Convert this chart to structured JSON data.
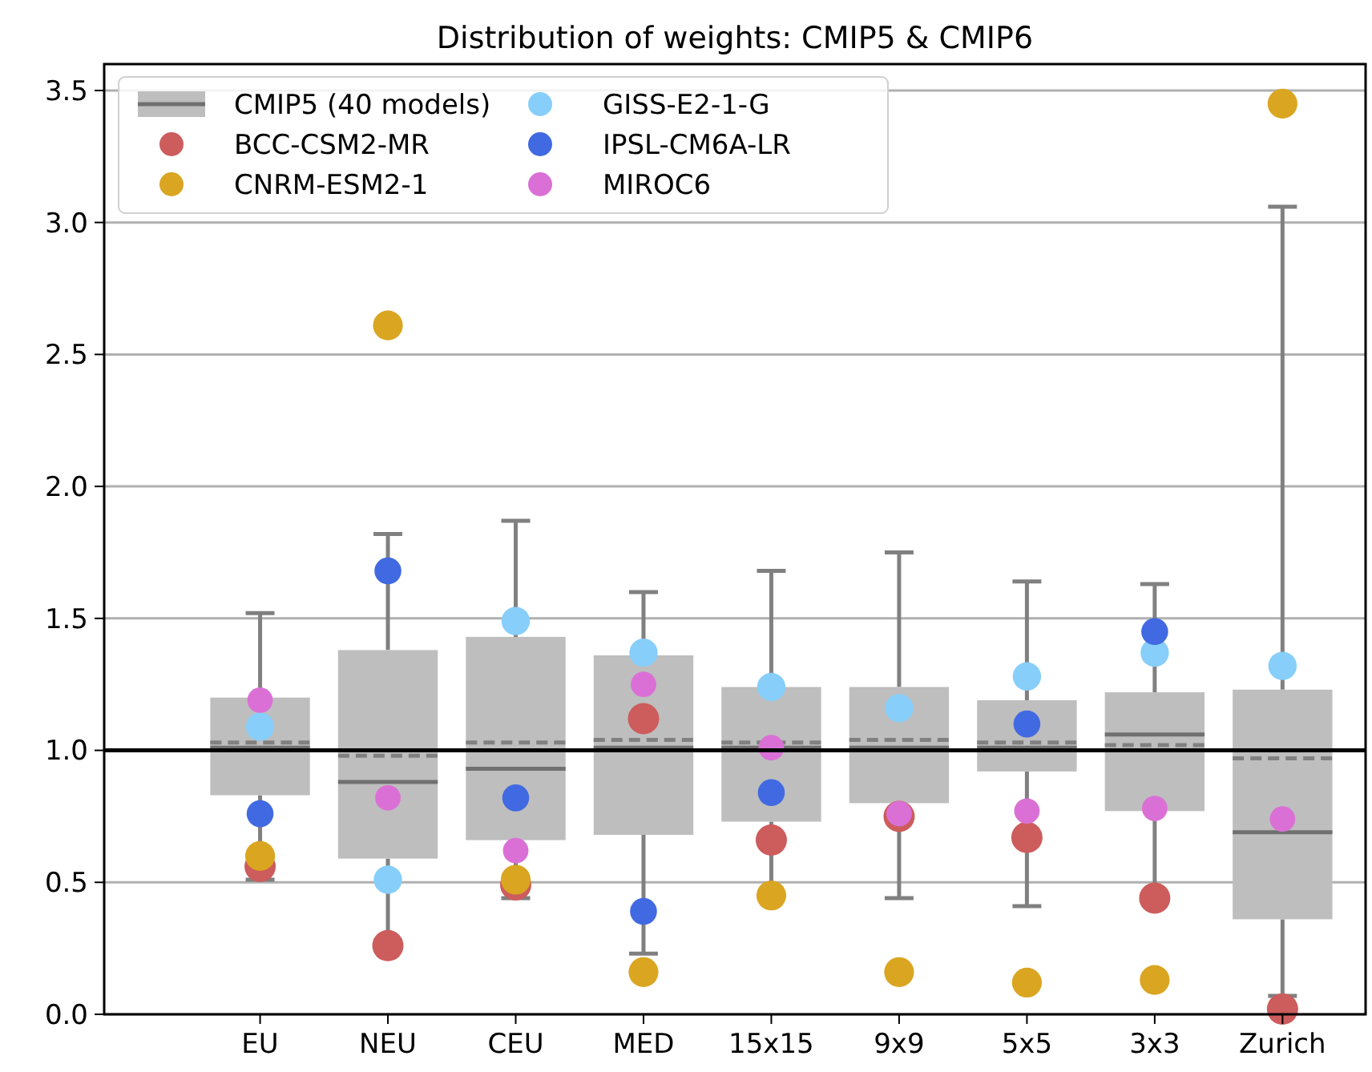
{
  "chart_data": {
    "type": "box",
    "title": "Distribution of weights: CMIP5 & CMIP6",
    "categories": [
      "EU",
      "NEU",
      "CEU",
      "MED",
      "15x15",
      "9x9",
      "5x5",
      "3x3",
      "Zurich"
    ],
    "ylim": [
      0,
      3.6
    ],
    "yticks": [
      {
        "value": 0,
        "label": "0.0"
      },
      0.5,
      {
        "value": 1,
        "label": "1.0"
      },
      1.5,
      {
        "value": 2,
        "label": "2.0"
      },
      2.5,
      {
        "value": 3,
        "label": "3.0"
      },
      3.5
    ],
    "grid": "y",
    "legend": "top left",
    "marker": "circle",
    "ref_lines": [
      {
        "axis": "y",
        "value": 1,
        "color": "#000000"
      }
    ],
    "series": [
      {
        "name": "CMIP5 (40 models)",
        "color": "#bebebe",
        "boxes": [
          {
            "low": 0.51,
            "q1": 0.83,
            "median": 1.01,
            "q3": 1.2,
            "high": 1.52,
            "mean": 1.03
          },
          {
            "low": 0.28,
            "q1": 0.59,
            "median": 0.88,
            "q3": 1.38,
            "high": 1.82,
            "mean": 0.98
          },
          {
            "low": 0.44,
            "q1": 0.66,
            "median": 0.93,
            "q3": 1.43,
            "high": 1.87,
            "mean": 1.03
          },
          {
            "low": 0.23,
            "q1": 0.68,
            "median": 1.01,
            "q3": 1.36,
            "high": 1.6,
            "mean": 1.04
          },
          {
            "low": 0.45,
            "q1": 0.73,
            "median": 1.01,
            "q3": 1.24,
            "high": 1.68,
            "mean": 1.03
          },
          {
            "low": 0.44,
            "q1": 0.8,
            "median": 1.01,
            "q3": 1.24,
            "high": 1.75,
            "mean": 1.04
          },
          {
            "low": 0.41,
            "q1": 0.92,
            "median": 1.01,
            "q3": 1.19,
            "high": 1.64,
            "mean": 1.03
          },
          {
            "low": 0.44,
            "q1": 0.77,
            "median": 1.06,
            "q3": 1.22,
            "high": 1.63,
            "mean": 1.02
          },
          {
            "low": 0.07,
            "q1": 0.36,
            "median": 0.69,
            "q3": 1.23,
            "high": 3.06,
            "mean": 0.97
          }
        ]
      },
      {
        "type": "scatter",
        "name": "BCC-CSM2-MR",
        "color": "#cd5c5c",
        "values": [
          0.56,
          0.26,
          0.49,
          1.12,
          0.66,
          0.75,
          0.67,
          0.44,
          0.02
        ]
      },
      {
        "type": "scatter",
        "name": "CNRM-ESM2-1",
        "color": "#daa520",
        "values": [
          0.6,
          2.61,
          0.51,
          0.16,
          0.45,
          0.16,
          0.12,
          0.13,
          3.45
        ]
      },
      {
        "type": "scatter",
        "name": "GISS-E2-1-G",
        "color": "#87cefa",
        "values": [
          1.09,
          0.51,
          1.49,
          1.37,
          1.24,
          1.16,
          1.28,
          1.37,
          1.32
        ]
      },
      {
        "type": "scatter",
        "name": "IPSL-CM6A-LR",
        "color": "#4169e1",
        "values": [
          0.76,
          1.68,
          0.82,
          0.39,
          0.84,
          null,
          1.1,
          1.45,
          null
        ]
      },
      {
        "type": "scatter",
        "name": "MIROC6",
        "color": "#da70d6",
        "values": [
          1.19,
          0.82,
          0.62,
          1.25,
          1.01,
          0.76,
          0.77,
          0.78,
          0.74
        ]
      }
    ]
  }
}
